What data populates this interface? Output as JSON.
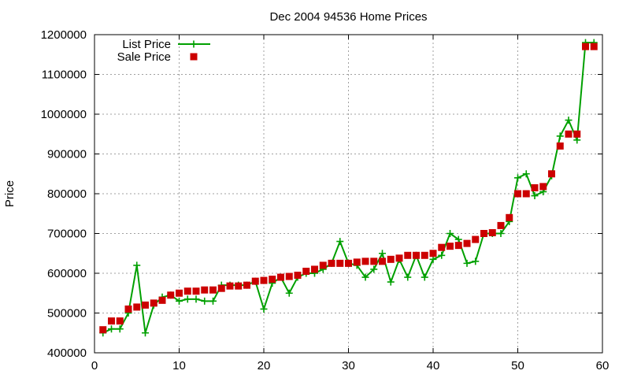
{
  "chart_data": {
    "type": "line",
    "title": "Dec 2004 94536 Home Prices",
    "xlabel": "",
    "ylabel": "Price",
    "xlim": [
      0,
      60
    ],
    "ylim": [
      400000,
      1200000
    ],
    "x_ticks": [
      "0",
      "10",
      "20",
      "30",
      "40",
      "50",
      "60"
    ],
    "y_ticks": [
      "400000",
      "500000",
      "600000",
      "700000",
      "800000",
      "900000",
      "1000000",
      "1100000",
      "1200000"
    ],
    "grid": true,
    "legend_position": "top-left",
    "series": [
      {
        "name": "List Price",
        "color": "#00a000",
        "marker": "plus",
        "points": [
          [
            1,
            450000
          ],
          [
            2,
            460000
          ],
          [
            3,
            460000
          ],
          [
            4,
            500000
          ],
          [
            5,
            620000
          ],
          [
            6,
            450000
          ],
          [
            7,
            520000
          ],
          [
            8,
            540000
          ],
          [
            9,
            545000
          ],
          [
            10,
            530000
          ],
          [
            11,
            535000
          ],
          [
            12,
            535000
          ],
          [
            13,
            530000
          ],
          [
            14,
            530000
          ],
          [
            15,
            570000
          ],
          [
            16,
            570000
          ],
          [
            17,
            570000
          ],
          [
            18,
            570000
          ],
          [
            19,
            580000
          ],
          [
            20,
            510000
          ],
          [
            21,
            575000
          ],
          [
            22,
            590000
          ],
          [
            23,
            550000
          ],
          [
            24,
            590000
          ],
          [
            25,
            600000
          ],
          [
            26,
            600000
          ],
          [
            27,
            610000
          ],
          [
            28,
            625000
          ],
          [
            29,
            680000
          ],
          [
            30,
            625000
          ],
          [
            31,
            620000
          ],
          [
            32,
            590000
          ],
          [
            33,
            610000
          ],
          [
            34,
            650000
          ],
          [
            35,
            578000
          ],
          [
            36,
            635000
          ],
          [
            37,
            590000
          ],
          [
            38,
            645000
          ],
          [
            39,
            590000
          ],
          [
            40,
            635000
          ],
          [
            41,
            645000
          ],
          [
            42,
            700000
          ],
          [
            43,
            685000
          ],
          [
            44,
            625000
          ],
          [
            45,
            630000
          ],
          [
            46,
            700000
          ],
          [
            47,
            700000
          ],
          [
            48,
            700000
          ],
          [
            49,
            730000
          ],
          [
            50,
            840000
          ],
          [
            51,
            850000
          ],
          [
            52,
            795000
          ],
          [
            53,
            805000
          ],
          [
            54,
            845000
          ],
          [
            55,
            945000
          ],
          [
            56,
            985000
          ],
          [
            57,
            935000
          ],
          [
            58,
            1180000
          ],
          [
            59,
            1180000
          ]
        ]
      },
      {
        "name": "Sale Price",
        "color": "#cc0000",
        "marker": "square",
        "points": [
          [
            1,
            458000
          ],
          [
            2,
            480000
          ],
          [
            3,
            480000
          ],
          [
            4,
            510000
          ],
          [
            5,
            515000
          ],
          [
            6,
            520000
          ],
          [
            7,
            525000
          ],
          [
            8,
            532000
          ],
          [
            9,
            545000
          ],
          [
            10,
            550000
          ],
          [
            11,
            555000
          ],
          [
            12,
            555000
          ],
          [
            13,
            558000
          ],
          [
            14,
            558000
          ],
          [
            15,
            562000
          ],
          [
            16,
            568000
          ],
          [
            17,
            568000
          ],
          [
            18,
            570000
          ],
          [
            19,
            580000
          ],
          [
            20,
            582000
          ],
          [
            21,
            585000
          ],
          [
            22,
            590000
          ],
          [
            23,
            592000
          ],
          [
            24,
            595000
          ],
          [
            25,
            605000
          ],
          [
            26,
            610000
          ],
          [
            27,
            620000
          ],
          [
            28,
            625000
          ],
          [
            29,
            625000
          ],
          [
            30,
            625000
          ],
          [
            31,
            628000
          ],
          [
            32,
            630000
          ],
          [
            33,
            630000
          ],
          [
            34,
            630000
          ],
          [
            35,
            635000
          ],
          [
            36,
            638000
          ],
          [
            37,
            645000
          ],
          [
            38,
            645000
          ],
          [
            39,
            645000
          ],
          [
            40,
            650000
          ],
          [
            41,
            665000
          ],
          [
            42,
            668000
          ],
          [
            43,
            670000
          ],
          [
            44,
            675000
          ],
          [
            45,
            685000
          ],
          [
            46,
            700000
          ],
          [
            47,
            702000
          ],
          [
            48,
            720000
          ],
          [
            49,
            740000
          ],
          [
            50,
            800000
          ],
          [
            51,
            800000
          ],
          [
            52,
            815000
          ],
          [
            53,
            818000
          ],
          [
            54,
            850000
          ],
          [
            55,
            920000
          ],
          [
            56,
            950000
          ],
          [
            57,
            950000
          ],
          [
            58,
            1170000
          ],
          [
            59,
            1170000
          ]
        ]
      }
    ]
  }
}
